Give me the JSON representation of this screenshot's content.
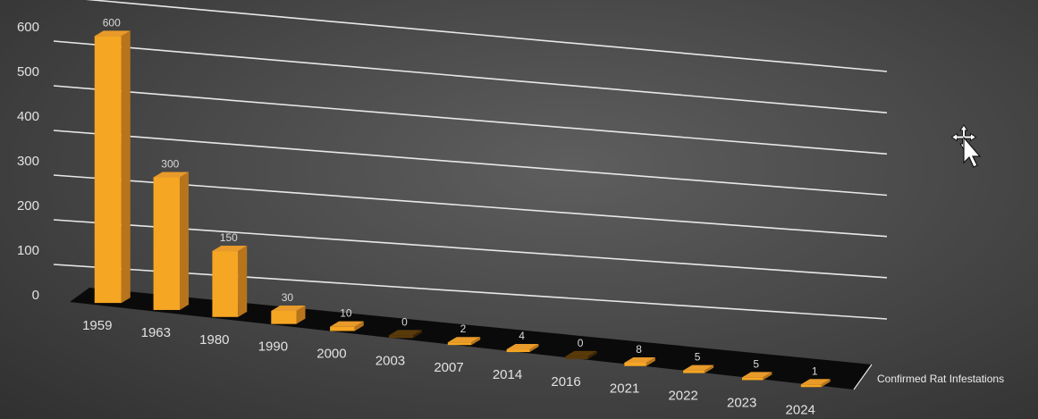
{
  "chart_data": {
    "type": "bar",
    "style": "3d-column",
    "categories": [
      "1959",
      "1963",
      "1980",
      "1990",
      "2000",
      "2003",
      "2007",
      "2014",
      "2016",
      "2021",
      "2022",
      "2023",
      "2024"
    ],
    "series": [
      {
        "name": "Confirmed Rat Infestations",
        "values": [
          600,
          300,
          150,
          30,
          10,
          0,
          2,
          4,
          0,
          8,
          5,
          5,
          1
        ]
      }
    ],
    "ylim": [
      0,
      600
    ],
    "yticks": [
      0,
      100,
      200,
      300,
      400,
      500,
      600
    ],
    "grid": true,
    "data_labels": true,
    "colors": {
      "bar_front": "#f5a623",
      "bar_top": "#e89a2a",
      "bar_side": "#b8741c",
      "bar_zero": "#5a3a0a",
      "floor": "#0a0a0a",
      "gridline": "#e8e8e8",
      "background": "#4a4a4a"
    }
  }
}
